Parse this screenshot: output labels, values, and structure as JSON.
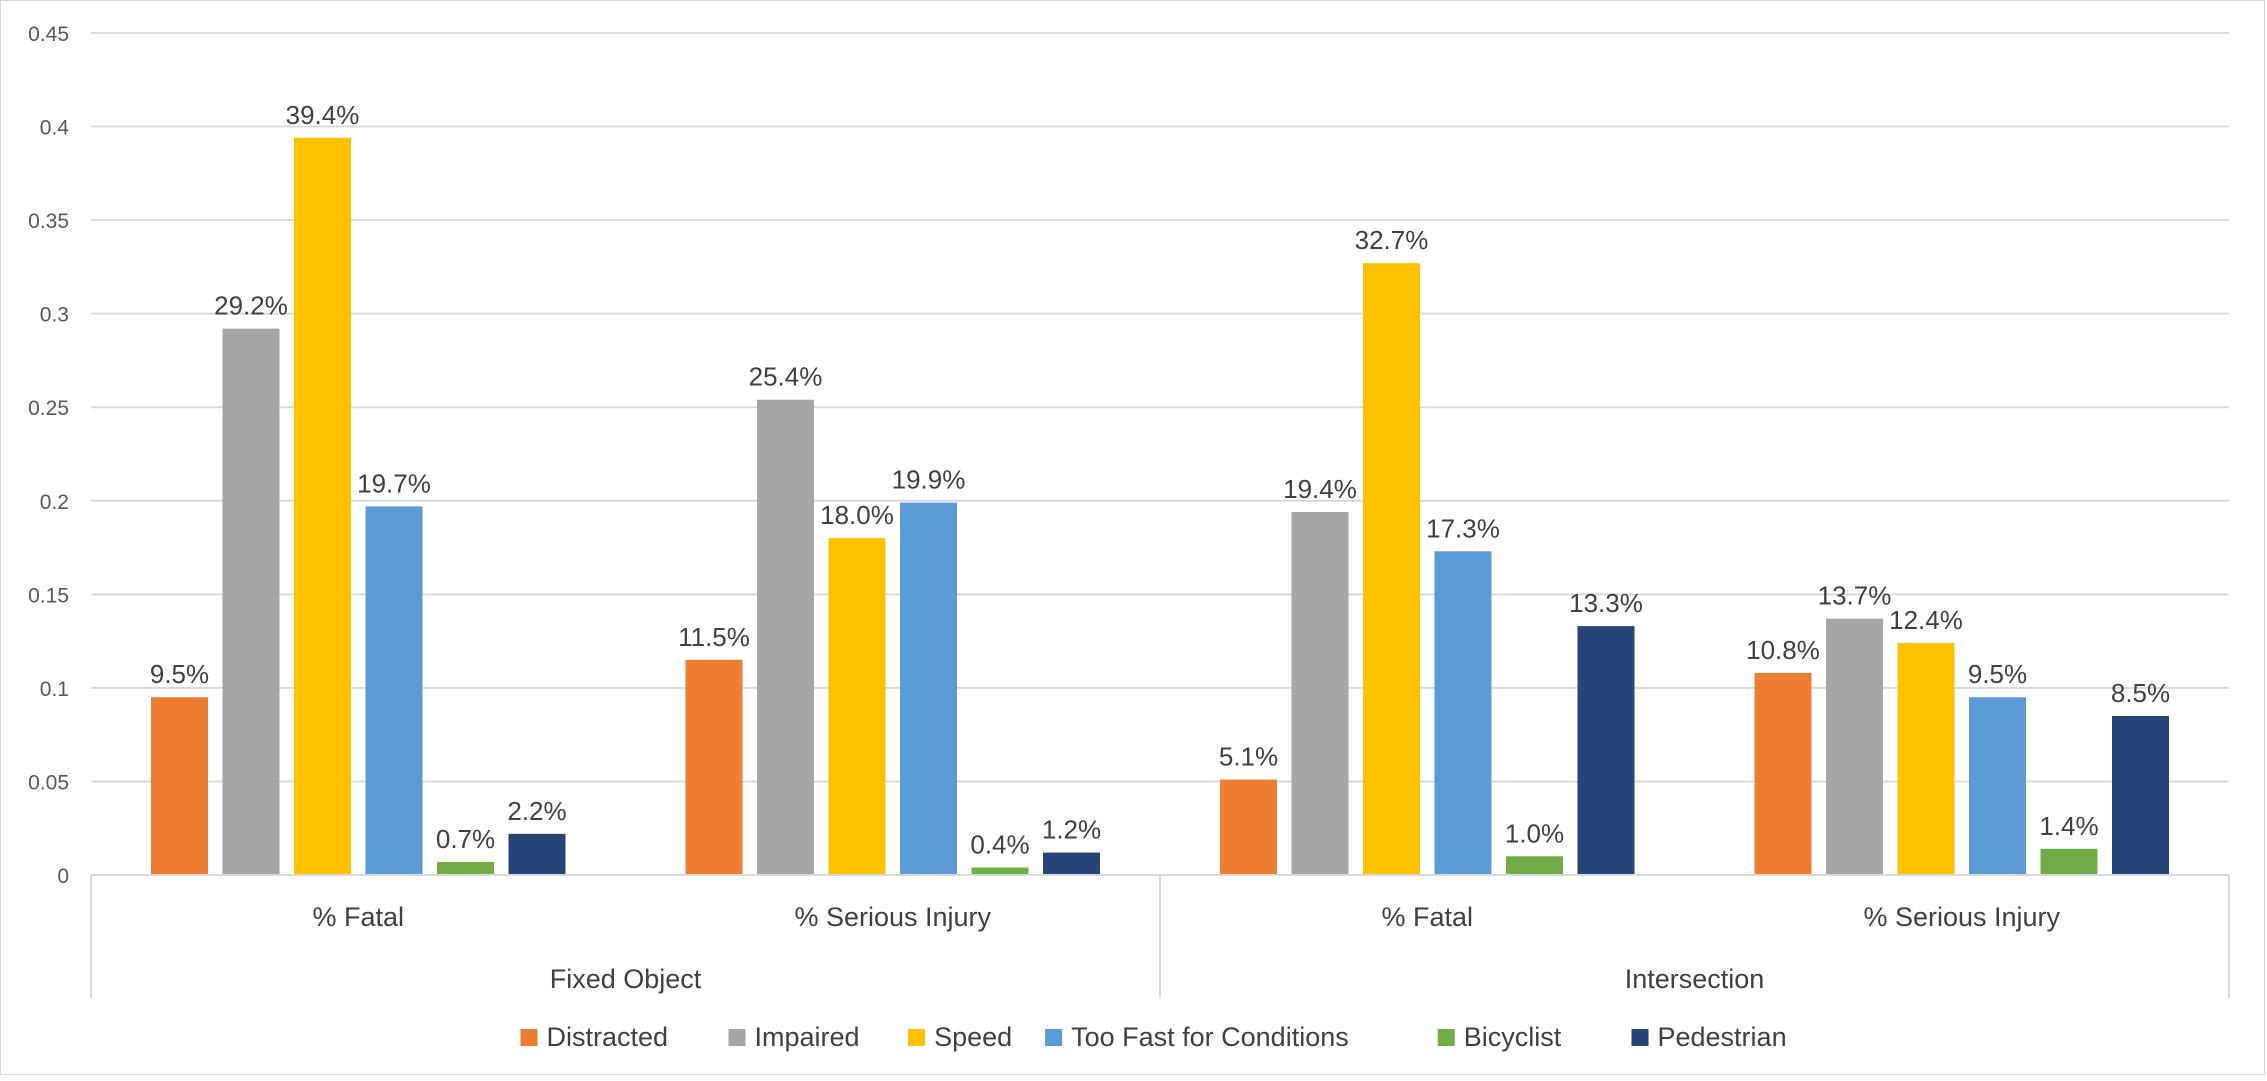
{
  "chart_data": {
    "type": "bar",
    "groups": [
      {
        "name": "Fixed Object",
        "categories": [
          "% Fatal",
          "% Serious Injury"
        ]
      },
      {
        "name": "Intersection",
        "categories": [
          "% Fatal",
          "% Serious Injury"
        ]
      }
    ],
    "categories": [
      "% Fatal",
      "% Serious Injury",
      "% Fatal",
      "% Serious Injury"
    ],
    "series": [
      {
        "name": "Distracted",
        "color": "#ED7D31",
        "values": [
          0.095,
          0.115,
          0.051,
          0.108
        ],
        "labels": [
          "9.5%",
          "11.5%",
          "5.1%",
          "10.8%"
        ]
      },
      {
        "name": "Impaired",
        "color": "#A5A5A5",
        "values": [
          0.292,
          0.254,
          0.194,
          0.137
        ],
        "labels": [
          "29.2%",
          "25.4%",
          "19.4%",
          "13.7%"
        ]
      },
      {
        "name": "Speed",
        "color": "#FFC000",
        "values": [
          0.394,
          0.18,
          0.327,
          0.124
        ],
        "labels": [
          "39.4%",
          "18.0%",
          "32.7%",
          "12.4%"
        ]
      },
      {
        "name": "Too Fast for Conditions",
        "color": "#5B9BD5",
        "values": [
          0.197,
          0.199,
          0.173,
          0.095
        ],
        "labels": [
          "19.7%",
          "19.9%",
          "17.3%",
          "9.5%"
        ]
      },
      {
        "name": "Bicyclist",
        "color": "#70AD47",
        "values": [
          0.007,
          0.004,
          0.01,
          0.014
        ],
        "labels": [
          "0.7%",
          "0.4%",
          "1.0%",
          "1.4%"
        ]
      },
      {
        "name": "Pedestrian",
        "color": "#264478",
        "values": [
          0.022,
          0.012,
          0.133,
          0.085
        ],
        "labels": [
          "2.2%",
          "1.2%",
          "13.3%",
          "8.5%"
        ]
      }
    ],
    "yticks": [
      "0",
      "0.05",
      "0.1",
      "0.15",
      "0.2",
      "0.25",
      "0.3",
      "0.35",
      "0.4",
      "0.45"
    ],
    "ylim": [
      0,
      0.45
    ],
    "grid": true,
    "legend_position": "bottom",
    "title": "",
    "xlabel": "",
    "ylabel": ""
  }
}
